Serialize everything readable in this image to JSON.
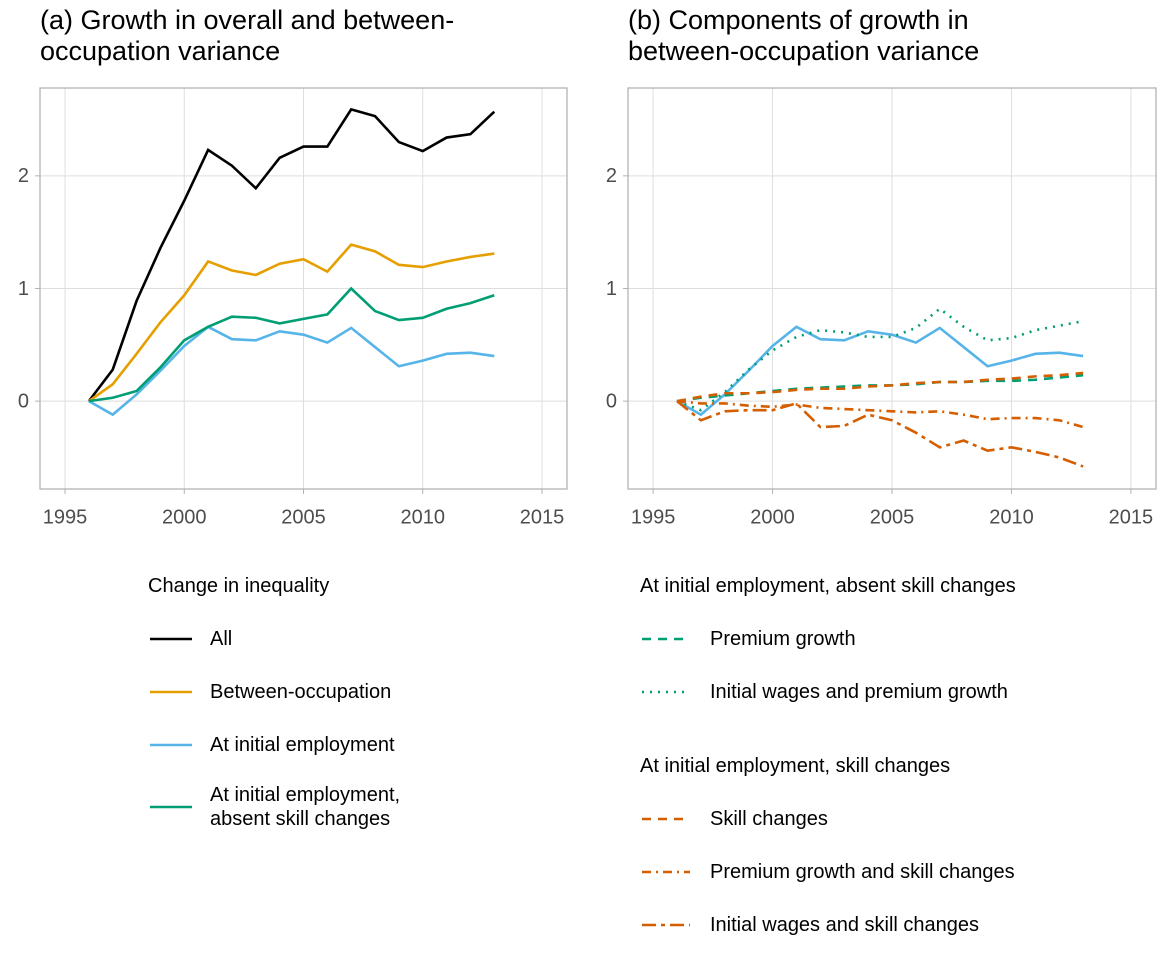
{
  "chart_data": [
    {
      "type": "line",
      "title": "(a) Growth in overall and between-occupation variance",
      "x": [
        1996,
        1997,
        1998,
        1999,
        2000,
        2001,
        2002,
        2003,
        2004,
        2005,
        2006,
        2007,
        2008,
        2009,
        2010,
        2011,
        2012,
        2013
      ],
      "xlim": [
        1993.95,
        2016.05
      ],
      "xticks": [
        1995,
        2000,
        2005,
        2010,
        2015
      ],
      "ylim": [
        -0.78,
        2.78
      ],
      "yticks": [
        0,
        1,
        2
      ],
      "grid": true,
      "legend_groups": [
        {
          "title": "Change in inequality",
          "series": [
            {
              "name": "All",
              "color": "#000000",
              "dash": "solid",
              "values": [
                0,
                0.28,
                0.89,
                1.36,
                1.78,
                2.23,
                2.09,
                1.89,
                2.16,
                2.26,
                2.26,
                2.59,
                2.53,
                2.3,
                2.22,
                2.34,
                2.37,
                2.57
              ]
            },
            {
              "name": "Between-occupation",
              "color": "#E69F00",
              "dash": "solid",
              "values": [
                0,
                0.15,
                0.42,
                0.7,
                0.94,
                1.24,
                1.16,
                1.12,
                1.22,
                1.26,
                1.15,
                1.39,
                1.33,
                1.21,
                1.19,
                1.24,
                1.28,
                1.31
              ]
            },
            {
              "name": "At initial employment",
              "color": "#56B4E9",
              "dash": "solid",
              "values": [
                0,
                -0.12,
                0.06,
                0.27,
                0.49,
                0.66,
                0.55,
                0.54,
                0.62,
                0.59,
                0.52,
                0.65,
                0.48,
                0.31,
                0.36,
                0.42,
                0.43,
                0.4
              ]
            },
            {
              "name": "At initial employment, absent skill changes",
              "color": "#009E73",
              "dash": "solid",
              "values": [
                0,
                0.03,
                0.09,
                0.3,
                0.54,
                0.66,
                0.75,
                0.74,
                0.69,
                0.73,
                0.77,
                1.0,
                0.8,
                0.72,
                0.74,
                0.82,
                0.87,
                0.94
              ]
            }
          ]
        }
      ]
    },
    {
      "type": "line",
      "title": "(b) Components of growth in between-occupation variance",
      "x": [
        1996,
        1997,
        1998,
        1999,
        2000,
        2001,
        2002,
        2003,
        2004,
        2005,
        2006,
        2007,
        2008,
        2009,
        2010,
        2011,
        2012,
        2013
      ],
      "xlim": [
        1993.95,
        2016.05
      ],
      "xticks": [
        1995,
        2000,
        2005,
        2010,
        2015
      ],
      "ylim": [
        -0.78,
        2.78
      ],
      "yticks": [
        0,
        1,
        2
      ],
      "grid": true,
      "series": [
        {
          "color": "#56B4E9",
          "dash": "solid",
          "values": [
            0,
            -0.12,
            0.06,
            0.27,
            0.49,
            0.66,
            0.55,
            0.54,
            0.62,
            0.59,
            0.52,
            0.65,
            0.48,
            0.31,
            0.36,
            0.42,
            0.43,
            0.4
          ]
        }
      ],
      "legend_groups": [
        {
          "title": "At initial employment, absent skill changes",
          "series": [
            {
              "name": "Premium growth",
              "color": "#009E73",
              "dash": "dashed",
              "values": [
                0,
                0.03,
                0.05,
                0.07,
                0.09,
                0.11,
                0.12,
                0.13,
                0.14,
                0.14,
                0.15,
                0.17,
                0.17,
                0.18,
                0.18,
                0.19,
                0.21,
                0.23
              ]
            },
            {
              "name": "Initial wages and premium growth",
              "color": "#009E73",
              "dash": "dotted",
              "values": [
                0,
                -0.08,
                0.08,
                0.28,
                0.45,
                0.57,
                0.63,
                0.61,
                0.57,
                0.57,
                0.65,
                0.82,
                0.66,
                0.54,
                0.56,
                0.63,
                0.67,
                0.71
              ]
            }
          ]
        },
        {
          "title": "At initial employment, skill changes",
          "series": [
            {
              "name": "Skill changes",
              "color": "#D55E00",
              "dash": "dashed",
              "values": [
                0,
                0.04,
                0.07,
                0.07,
                0.08,
                0.1,
                0.11,
                0.11,
                0.13,
                0.14,
                0.16,
                0.17,
                0.17,
                0.19,
                0.2,
                0.22,
                0.23,
                0.25
              ]
            },
            {
              "name": "Premium growth and skill changes",
              "color": "#D55E00",
              "dash": "dotdash",
              "values": [
                0,
                -0.02,
                -0.02,
                -0.04,
                -0.05,
                -0.03,
                -0.06,
                -0.07,
                -0.08,
                -0.09,
                -0.1,
                -0.09,
                -0.12,
                -0.16,
                -0.15,
                -0.15,
                -0.17,
                -0.23
              ]
            },
            {
              "name": "Initial wages and skill changes",
              "color": "#D55E00",
              "dash": "longdash",
              "values": [
                0,
                -0.17,
                -0.09,
                -0.08,
                -0.08,
                -0.02,
                -0.23,
                -0.22,
                -0.12,
                -0.17,
                -0.28,
                -0.41,
                -0.35,
                -0.44,
                -0.41,
                -0.45,
                -0.5,
                -0.58
              ]
            }
          ]
        }
      ]
    }
  ]
}
